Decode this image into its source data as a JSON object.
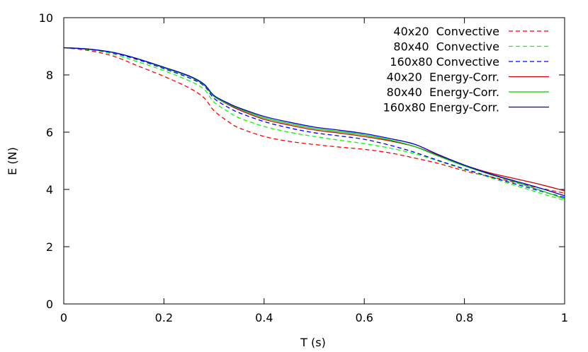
{
  "chart_data": {
    "type": "line",
    "xlabel": "T (s)",
    "ylabel": "E (N)",
    "xlim": [
      0,
      1
    ],
    "ylim": [
      0,
      10
    ],
    "xticks": [
      "0",
      "0.2",
      "0.4",
      "0.6",
      "0.8",
      "1"
    ],
    "yticks": [
      "0",
      "2",
      "4",
      "6",
      "8",
      "10"
    ],
    "grid": false,
    "legend_position": "top-right",
    "series": [
      {
        "name": "40x20  Convective",
        "color": "#ff0000",
        "dash": "dashed",
        "x": [
          0,
          0.05,
          0.1,
          0.15,
          0.2,
          0.25,
          0.28,
          0.3,
          0.33,
          0.35,
          0.4,
          0.45,
          0.5,
          0.55,
          0.6,
          0.65,
          0.7,
          0.75,
          0.8,
          0.85,
          0.9,
          0.95,
          1.0
        ],
        "y": [
          8.95,
          8.85,
          8.65,
          8.3,
          7.95,
          7.55,
          7.2,
          6.75,
          6.35,
          6.15,
          5.85,
          5.68,
          5.57,
          5.48,
          5.4,
          5.28,
          5.1,
          4.9,
          4.65,
          4.45,
          4.25,
          4.05,
          3.87
        ]
      },
      {
        "name": "80x40  Convective",
        "color": "#00ff00",
        "dash": "dashed",
        "x": [
          0,
          0.05,
          0.1,
          0.15,
          0.2,
          0.25,
          0.28,
          0.3,
          0.33,
          0.35,
          0.4,
          0.45,
          0.5,
          0.55,
          0.6,
          0.65,
          0.7,
          0.75,
          0.8,
          0.85,
          0.9,
          0.95,
          1.0
        ],
        "y": [
          8.95,
          8.88,
          8.72,
          8.45,
          8.15,
          7.8,
          7.5,
          7.05,
          6.7,
          6.5,
          6.2,
          6.0,
          5.85,
          5.72,
          5.6,
          5.45,
          5.25,
          4.98,
          4.7,
          4.42,
          4.15,
          3.88,
          3.62
        ]
      },
      {
        "name": "160x80 Convective",
        "color": "#0000ff",
        "dash": "dashed",
        "x": [
          0,
          0.05,
          0.1,
          0.15,
          0.2,
          0.25,
          0.28,
          0.3,
          0.33,
          0.35,
          0.4,
          0.45,
          0.5,
          0.55,
          0.6,
          0.65,
          0.7,
          0.75,
          0.8,
          0.85,
          0.9,
          0.95,
          1.0
        ],
        "y": [
          8.95,
          8.9,
          8.76,
          8.52,
          8.22,
          7.9,
          7.62,
          7.18,
          6.85,
          6.68,
          6.37,
          6.15,
          5.98,
          5.87,
          5.75,
          5.55,
          5.3,
          5.0,
          4.72,
          4.45,
          4.2,
          3.95,
          3.72
        ]
      },
      {
        "name": "40x20  Energy-Corr.",
        "color": "#cc0000",
        "dash": "solid",
        "x": [
          0,
          0.05,
          0.1,
          0.15,
          0.2,
          0.25,
          0.28,
          0.3,
          0.33,
          0.35,
          0.4,
          0.45,
          0.5,
          0.55,
          0.6,
          0.65,
          0.7,
          0.75,
          0.8,
          0.85,
          0.9,
          0.95,
          1.0
        ],
        "y": [
          8.95,
          8.9,
          8.78,
          8.55,
          8.25,
          7.95,
          7.65,
          7.25,
          6.95,
          6.78,
          6.45,
          6.25,
          6.08,
          5.97,
          5.85,
          5.7,
          5.5,
          5.18,
          4.85,
          4.58,
          4.38,
          4.18,
          3.95
        ]
      },
      {
        "name": "80x40  Energy-Corr.",
        "color": "#00cc00",
        "dash": "solid",
        "x": [
          0,
          0.05,
          0.1,
          0.15,
          0.2,
          0.25,
          0.28,
          0.3,
          0.33,
          0.35,
          0.4,
          0.45,
          0.5,
          0.55,
          0.6,
          0.65,
          0.7,
          0.75,
          0.8,
          0.85,
          0.9,
          0.95,
          1.0
        ],
        "y": [
          8.95,
          8.9,
          8.78,
          8.55,
          8.25,
          7.95,
          7.65,
          7.25,
          6.97,
          6.82,
          6.5,
          6.3,
          6.13,
          6.02,
          5.9,
          5.73,
          5.5,
          5.15,
          4.82,
          4.53,
          4.27,
          3.98,
          3.67
        ]
      },
      {
        "name": "160x80 Energy-Corr.",
        "color": "#0000cc",
        "dash": "solid",
        "x": [
          0,
          0.05,
          0.1,
          0.15,
          0.2,
          0.25,
          0.28,
          0.3,
          0.33,
          0.35,
          0.4,
          0.45,
          0.5,
          0.55,
          0.6,
          0.65,
          0.7,
          0.75,
          0.8,
          0.85,
          0.9,
          0.95,
          1.0
        ],
        "y": [
          8.95,
          8.9,
          8.78,
          8.55,
          8.27,
          7.97,
          7.68,
          7.28,
          7.0,
          6.85,
          6.55,
          6.35,
          6.18,
          6.07,
          5.95,
          5.78,
          5.58,
          5.2,
          4.85,
          4.55,
          4.3,
          4.05,
          3.78
        ]
      }
    ]
  }
}
